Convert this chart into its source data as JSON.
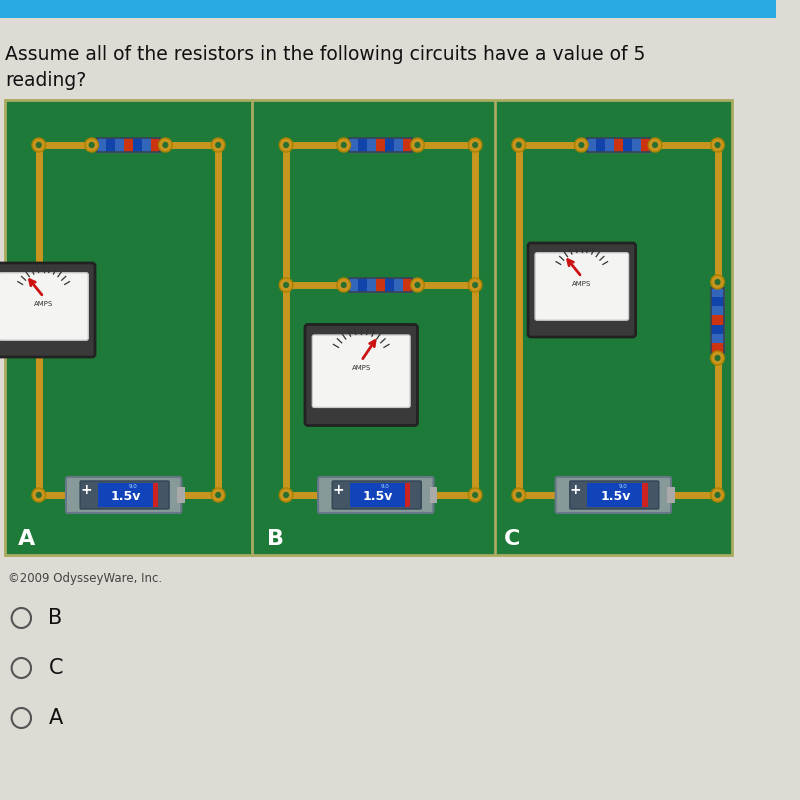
{
  "bg_color": "#dedad4",
  "top_bar_color": "#29abe2",
  "question_text1": "Assume all of the resistors in the following circuits have a value of 5",
  "question_text2": "reading?",
  "circuit_bg": "#1e7a38",
  "wire_color": "#c8961e",
  "node_outer_color": "#c8961e",
  "node_inner_color": "#2a6e30",
  "label_color": "#ffffff",
  "copyright_text": "©2009 OdysseyWare, Inc.",
  "choices": [
    "B",
    "C",
    "A"
  ],
  "meter_face_color": "#f5f5f5",
  "meter_dark_color": "#3a3a3a",
  "needle_color_A": "#cc1111",
  "needle_color_B": "#cc1111",
  "needle_color_C": "#cc2222",
  "battery_blue": "#1144bb",
  "battery_dark": "#445566",
  "resistor_bands": [
    "#3366bb",
    "#1144aa",
    "#3366bb",
    "#cc3311",
    "#1144aa",
    "#3366bb",
    "#cc3311"
  ],
  "resistor_body": "#8899bb"
}
